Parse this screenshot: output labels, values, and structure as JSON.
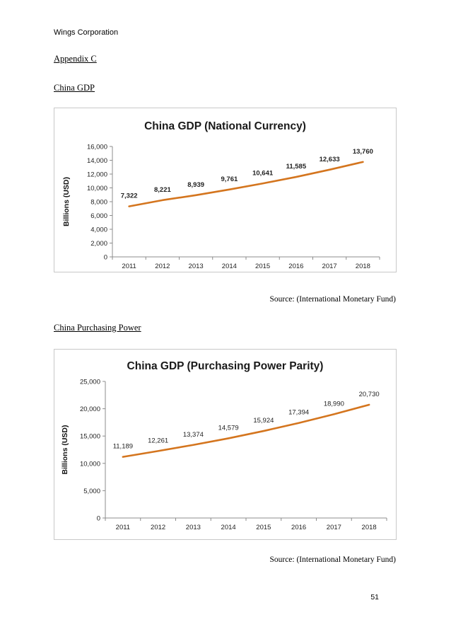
{
  "document": {
    "header": "Wings Corporation",
    "appendix_heading": "Appendix C",
    "section1_heading": "China GDP",
    "section1_source": "Source: (International Monetary Fund)",
    "section2_heading": "China Purchasing Power",
    "section2_source": "Source: (International Monetary Fund)",
    "page_number": "51"
  },
  "colors": {
    "line": "#D4751E",
    "axis": "#8c8c8c",
    "border": "#c8c8c8"
  },
  "chart_data": [
    {
      "type": "line",
      "title": "China GDP (National Currency)",
      "xlabel": "",
      "ylabel": "Billions  (USD)",
      "categories": [
        "2011",
        "2012",
        "2013",
        "2014",
        "2015",
        "2016",
        "2017",
        "2018"
      ],
      "series": [
        {
          "name": "China GDP (National Currency)",
          "values": [
            7322,
            8221,
            8939,
            9761,
            10641,
            11585,
            12633,
            13760
          ]
        }
      ],
      "data_labels": [
        "7,322",
        "8,221",
        "8,939",
        "9,761",
        "10,641",
        "11,585",
        "12,633",
        "13,760"
      ],
      "ylim": [
        0,
        16000
      ],
      "yticks": [
        0,
        2000,
        4000,
        6000,
        8000,
        10000,
        12000,
        14000,
        16000
      ],
      "ytick_labels": [
        "0",
        "2,000",
        "4,000",
        "6,000",
        "8,000",
        "10,000",
        "12,000",
        "14,000",
        "16,000"
      ],
      "labels_bold": true,
      "grid": false,
      "legend": "none"
    },
    {
      "type": "line",
      "title": "China GDP (Purchasing Power Parity)",
      "xlabel": "",
      "ylabel": "Billions  (USD)",
      "categories": [
        "2011",
        "2012",
        "2013",
        "2014",
        "2015",
        "2016",
        "2017",
        "2018"
      ],
      "series": [
        {
          "name": "China GDP (Purchasing Power Parity)",
          "values": [
            11189,
            12261,
            13374,
            14579,
            15924,
            17394,
            18990,
            20730
          ]
        }
      ],
      "data_labels": [
        "11,189",
        "12,261",
        "13,374",
        "14,579",
        "15,924",
        "17,394",
        "18,990",
        "20,730"
      ],
      "ylim": [
        0,
        25000
      ],
      "yticks": [
        0,
        5000,
        10000,
        15000,
        20000,
        25000
      ],
      "ytick_labels": [
        "0",
        "5,000",
        "10,000",
        "15,000",
        "20,000",
        "25,000"
      ],
      "labels_bold": false,
      "grid": false,
      "legend": "none"
    }
  ]
}
